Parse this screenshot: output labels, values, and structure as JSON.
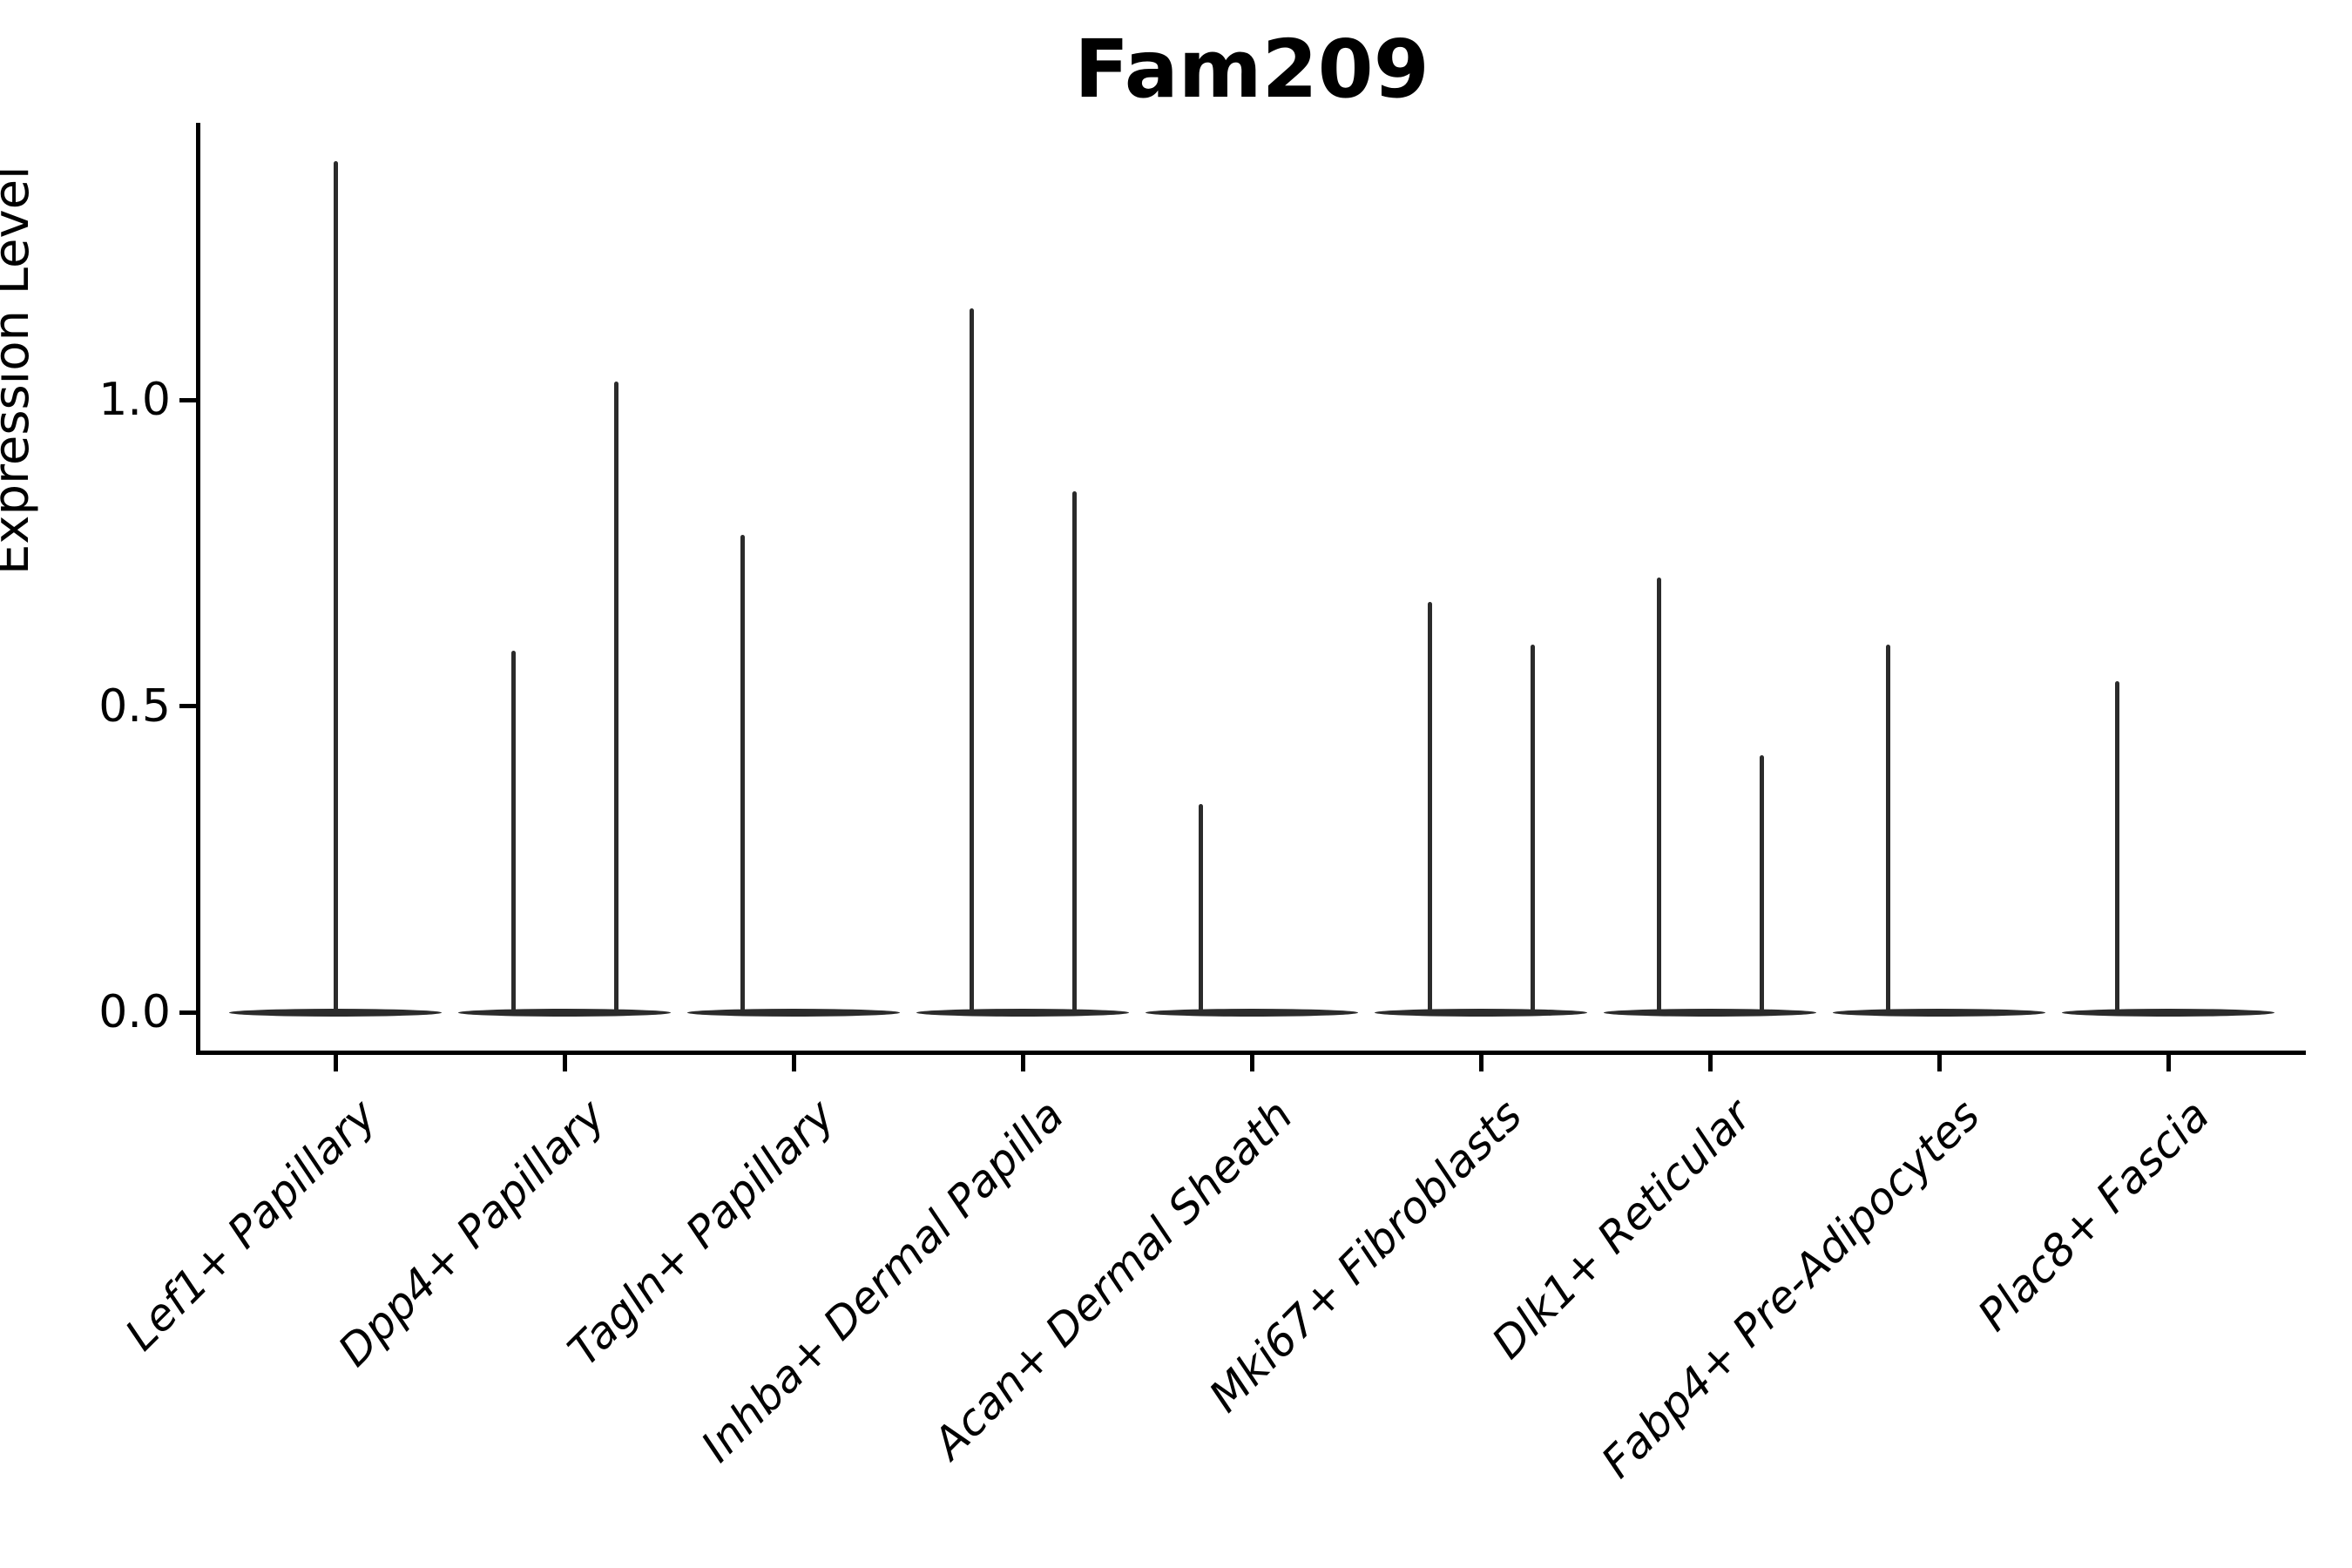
{
  "title": "Fam209",
  "axes": {
    "ylabel": "Expression Level",
    "y_tick_labels": [
      "0.0",
      "0.5",
      "1.0"
    ]
  },
  "colors": {
    "violin": "#2b2b2b",
    "axis": "#000000",
    "background": "#ffffff"
  },
  "chart_data": {
    "type": "violin",
    "title": "Fam209",
    "xlabel": "",
    "ylabel": "Expression Level",
    "y_ticks": [
      0.0,
      0.5,
      1.0
    ],
    "ylim": [
      -0.07,
      1.45
    ],
    "grid": false,
    "legend": false,
    "baseline_value": 0.0,
    "categories": [
      "Lef1+ Papillary",
      "Dpp4+ Papillary",
      "Tagln+ Papillary",
      "Inhba+ Dermal Papilla",
      "Acan+ Dermal Sheath",
      "Mki67+ Fibroblasts",
      "Dlk1+ Reticular",
      "Fabp4+ Pre-Adipocytes",
      "Plac8+ Fascia"
    ],
    "violins": [
      {
        "category": "Lef1+ Papillary",
        "spikes": [
          {
            "side": "center",
            "peak": 1.39
          }
        ]
      },
      {
        "category": "Dpp4+ Papillary",
        "spikes": [
          {
            "side": "left",
            "peak": 0.59
          },
          {
            "side": "right",
            "peak": 1.03
          }
        ]
      },
      {
        "category": "Tagln+ Papillary",
        "spikes": [
          {
            "side": "left",
            "peak": 0.78
          }
        ]
      },
      {
        "category": "Inhba+ Dermal Papilla",
        "spikes": [
          {
            "side": "left",
            "peak": 1.15
          },
          {
            "side": "right",
            "peak": 0.85
          }
        ]
      },
      {
        "category": "Acan+ Dermal Sheath",
        "spikes": [
          {
            "side": "left",
            "peak": 0.34
          }
        ]
      },
      {
        "category": "Mki67+ Fibroblasts",
        "spikes": [
          {
            "side": "left",
            "peak": 0.67
          },
          {
            "side": "right",
            "peak": 0.6
          }
        ]
      },
      {
        "category": "Dlk1+ Reticular",
        "spikes": [
          {
            "side": "left",
            "peak": 0.71
          },
          {
            "side": "right",
            "peak": 0.42
          }
        ]
      },
      {
        "category": "Fabp4+ Pre-Adipocytes",
        "spikes": [
          {
            "side": "left",
            "peak": 0.6
          }
        ]
      },
      {
        "category": "Plac8+ Fascia",
        "spikes": [
          {
            "side": "left",
            "peak": 0.54
          }
        ]
      }
    ]
  }
}
